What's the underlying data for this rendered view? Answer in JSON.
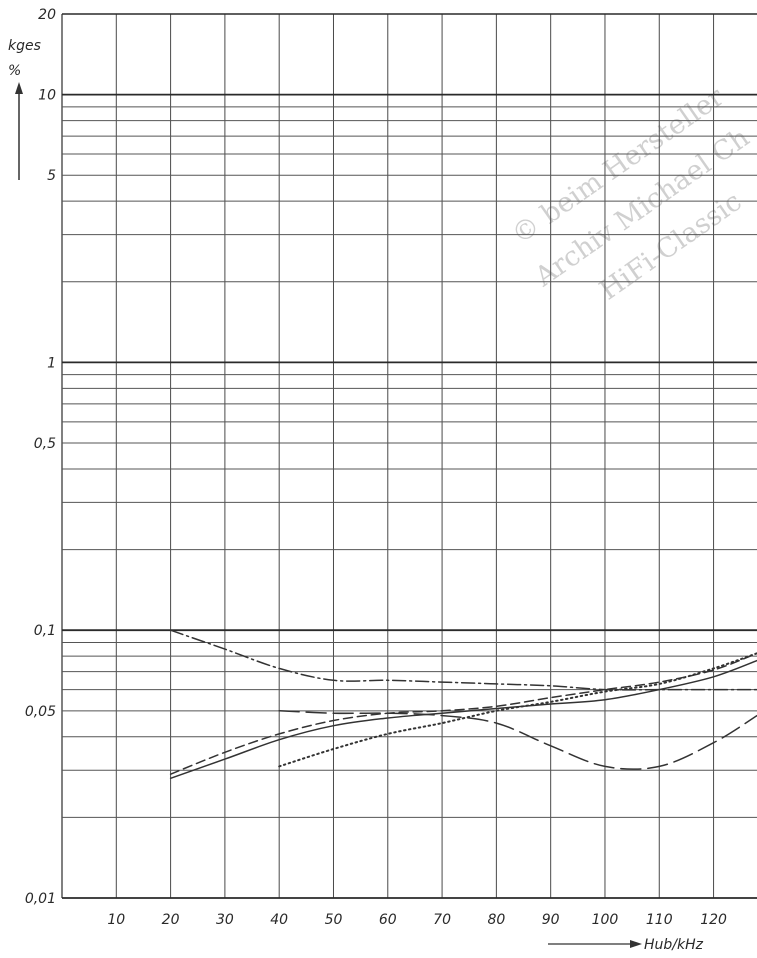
{
  "chart_data": {
    "type": "line",
    "ylabel": "kges",
    "ylabel_unit": "%",
    "xlabel": "Hub/kHz",
    "y_scale": "log",
    "ylim": [
      0.01,
      20
    ],
    "xlim": [
      0,
      128
    ],
    "y_ticks": [
      {
        "value": 20,
        "label": "20"
      },
      {
        "value": 10,
        "label": "10"
      },
      {
        "value": 5,
        "label": "5"
      },
      {
        "value": 1,
        "label": "1"
      },
      {
        "value": 0.5,
        "label": "0,5"
      },
      {
        "value": 0.1,
        "label": "0,1"
      },
      {
        "value": 0.05,
        "label": "0,05"
      },
      {
        "value": 0.01,
        "label": "0,01"
      }
    ],
    "x_ticks": [
      {
        "value": 10,
        "label": "10"
      },
      {
        "value": 20,
        "label": "20"
      },
      {
        "value": 30,
        "label": "30"
      },
      {
        "value": 40,
        "label": "40"
      },
      {
        "value": 50,
        "label": "50"
      },
      {
        "value": 60,
        "label": "60"
      },
      {
        "value": 70,
        "label": "70"
      },
      {
        "value": 80,
        "label": "80"
      },
      {
        "value": 90,
        "label": "90"
      },
      {
        "value": 100,
        "label": "100"
      },
      {
        "value": 110,
        "label": "110"
      },
      {
        "value": 120,
        "label": "120"
      }
    ],
    "grid": true,
    "series": [
      {
        "style": "dash-dot",
        "points": [
          [
            20,
            0.1
          ],
          [
            30,
            0.085
          ],
          [
            40,
            0.072
          ],
          [
            50,
            0.065
          ],
          [
            60,
            0.065
          ],
          [
            70,
            0.064
          ],
          [
            80,
            0.063
          ],
          [
            90,
            0.062
          ],
          [
            100,
            0.06
          ],
          [
            110,
            0.06
          ],
          [
            120,
            0.06
          ],
          [
            128,
            0.06
          ]
        ]
      },
      {
        "style": "solid",
        "points": [
          [
            20,
            0.028
          ],
          [
            30,
            0.033
          ],
          [
            40,
            0.039
          ],
          [
            50,
            0.044
          ],
          [
            60,
            0.047
          ],
          [
            70,
            0.049
          ],
          [
            80,
            0.051
          ],
          [
            90,
            0.053
          ],
          [
            100,
            0.055
          ],
          [
            110,
            0.06
          ],
          [
            120,
            0.067
          ],
          [
            128,
            0.077
          ]
        ]
      },
      {
        "style": "short-dash",
        "points": [
          [
            20,
            0.029
          ],
          [
            30,
            0.035
          ],
          [
            40,
            0.041
          ],
          [
            50,
            0.046
          ],
          [
            60,
            0.049
          ],
          [
            70,
            0.05
          ],
          [
            80,
            0.052
          ],
          [
            90,
            0.056
          ],
          [
            100,
            0.06
          ],
          [
            110,
            0.064
          ],
          [
            120,
            0.071
          ],
          [
            128,
            0.082
          ]
        ]
      },
      {
        "style": "dotted",
        "points": [
          [
            40,
            0.031
          ],
          [
            50,
            0.036
          ],
          [
            60,
            0.041
          ],
          [
            70,
            0.045
          ],
          [
            80,
            0.05
          ],
          [
            90,
            0.054
          ],
          [
            100,
            0.059
          ],
          [
            110,
            0.063
          ],
          [
            120,
            0.072
          ],
          [
            128,
            0.082
          ]
        ]
      },
      {
        "style": "long-dash",
        "points": [
          [
            40,
            0.05
          ],
          [
            50,
            0.049
          ],
          [
            60,
            0.049
          ],
          [
            70,
            0.048
          ],
          [
            80,
            0.045
          ],
          [
            90,
            0.037
          ],
          [
            100,
            0.031
          ],
          [
            110,
            0.031
          ],
          [
            120,
            0.038
          ],
          [
            128,
            0.048
          ]
        ]
      }
    ],
    "watermark": [
      "© beim Hersteller",
      "Archiv Michael Ch",
      "HiFi-Classic"
    ]
  }
}
